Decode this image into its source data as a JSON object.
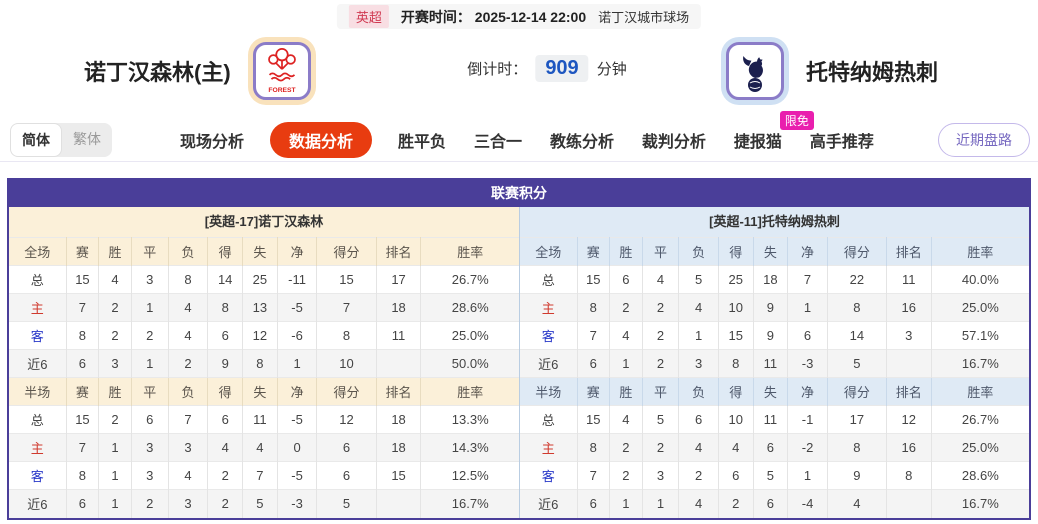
{
  "colors": {
    "accent_purple": "#4a3e99",
    "active_tab_red": "#e83c10",
    "badge_pink": "#e91fae",
    "home_panel_cream": "#fbf0d9",
    "away_panel_blue": "#dfeaf5",
    "countdown_blue": "#1d56c0",
    "league_badge_bg": "#f8dee3",
    "league_badge_text": "#d03a52"
  },
  "top_bar": {
    "league": "英超",
    "kickoff_label": "开赛时间：",
    "kickoff_time": "2025-12-14 22:00",
    "venue": "诺丁汉城市球场"
  },
  "match_header": {
    "home_name": "诺丁汉森林(主)",
    "home_crest_text": "FOREST",
    "countdown_label": "倒计时：",
    "countdown_value": "909",
    "countdown_unit": "分钟",
    "away_name": "托特纳姆热刺"
  },
  "nav": {
    "lang_simplified": "简体",
    "lang_traditional": "繁体",
    "tabs": [
      {
        "label": "现场分析",
        "active": false
      },
      {
        "label": "数据分析",
        "active": true
      },
      {
        "label": "胜平负",
        "active": false
      },
      {
        "label": "三合一",
        "active": false
      },
      {
        "label": "教练分析",
        "active": false
      },
      {
        "label": "裁判分析",
        "active": false
      },
      {
        "label": "捷报猫",
        "active": false,
        "badge": "限免"
      },
      {
        "label": "高手推荐",
        "active": false
      }
    ],
    "recent_odds_button": "近期盘路"
  },
  "league_table": {
    "title": "联赛积分",
    "label_colors": {
      "主": "#d03a2e",
      "客": "#2737c8"
    },
    "sides": [
      {
        "id": "home",
        "subtitle": "[英超-17]诺丁汉森林",
        "sections": [
          {
            "header": [
              "全场",
              "赛",
              "胜",
              "平",
              "负",
              "得",
              "失",
              "净",
              "得分",
              "排名",
              "胜率"
            ],
            "rows": [
              [
                "总",
                "15",
                "4",
                "3",
                "8",
                "14",
                "25",
                "-11",
                "15",
                "17",
                "26.7%"
              ],
              [
                "主",
                "7",
                "2",
                "1",
                "4",
                "8",
                "13",
                "-5",
                "7",
                "18",
                "28.6%"
              ],
              [
                "客",
                "8",
                "2",
                "2",
                "4",
                "6",
                "12",
                "-6",
                "8",
                "11",
                "25.0%"
              ],
              [
                "近6",
                "6",
                "3",
                "1",
                "2",
                "9",
                "8",
                "1",
                "10",
                "",
                "50.0%"
              ]
            ]
          },
          {
            "header": [
              "半场",
              "赛",
              "胜",
              "平",
              "负",
              "得",
              "失",
              "净",
              "得分",
              "排名",
              "胜率"
            ],
            "rows": [
              [
                "总",
                "15",
                "2",
                "6",
                "7",
                "6",
                "11",
                "-5",
                "12",
                "18",
                "13.3%"
              ],
              [
                "主",
                "7",
                "1",
                "3",
                "3",
                "4",
                "4",
                "0",
                "6",
                "18",
                "14.3%"
              ],
              [
                "客",
                "8",
                "1",
                "3",
                "4",
                "2",
                "7",
                "-5",
                "6",
                "15",
                "12.5%"
              ],
              [
                "近6",
                "6",
                "1",
                "2",
                "3",
                "2",
                "5",
                "-3",
                "5",
                "",
                "16.7%"
              ]
            ]
          }
        ]
      },
      {
        "id": "away",
        "subtitle": "[英超-11]托特纳姆热刺",
        "sections": [
          {
            "header": [
              "全场",
              "赛",
              "胜",
              "平",
              "负",
              "得",
              "失",
              "净",
              "得分",
              "排名",
              "胜率"
            ],
            "rows": [
              [
                "总",
                "15",
                "6",
                "4",
                "5",
                "25",
                "18",
                "7",
                "22",
                "11",
                "40.0%"
              ],
              [
                "主",
                "8",
                "2",
                "2",
                "4",
                "10",
                "9",
                "1",
                "8",
                "16",
                "25.0%"
              ],
              [
                "客",
                "7",
                "4",
                "2",
                "1",
                "15",
                "9",
                "6",
                "14",
                "3",
                "57.1%"
              ],
              [
                "近6",
                "6",
                "1",
                "2",
                "3",
                "8",
                "11",
                "-3",
                "5",
                "",
                "16.7%"
              ]
            ]
          },
          {
            "header": [
              "半场",
              "赛",
              "胜",
              "平",
              "负",
              "得",
              "失",
              "净",
              "得分",
              "排名",
              "胜率"
            ],
            "rows": [
              [
                "总",
                "15",
                "4",
                "5",
                "6",
                "10",
                "11",
                "-1",
                "17",
                "12",
                "26.7%"
              ],
              [
                "主",
                "8",
                "2",
                "2",
                "4",
                "4",
                "6",
                "-2",
                "8",
                "16",
                "25.0%"
              ],
              [
                "客",
                "7",
                "2",
                "3",
                "2",
                "6",
                "5",
                "1",
                "9",
                "8",
                "28.6%"
              ],
              [
                "近6",
                "6",
                "1",
                "1",
                "4",
                "2",
                "6",
                "-4",
                "4",
                "",
                "16.7%"
              ]
            ]
          }
        ]
      }
    ]
  }
}
